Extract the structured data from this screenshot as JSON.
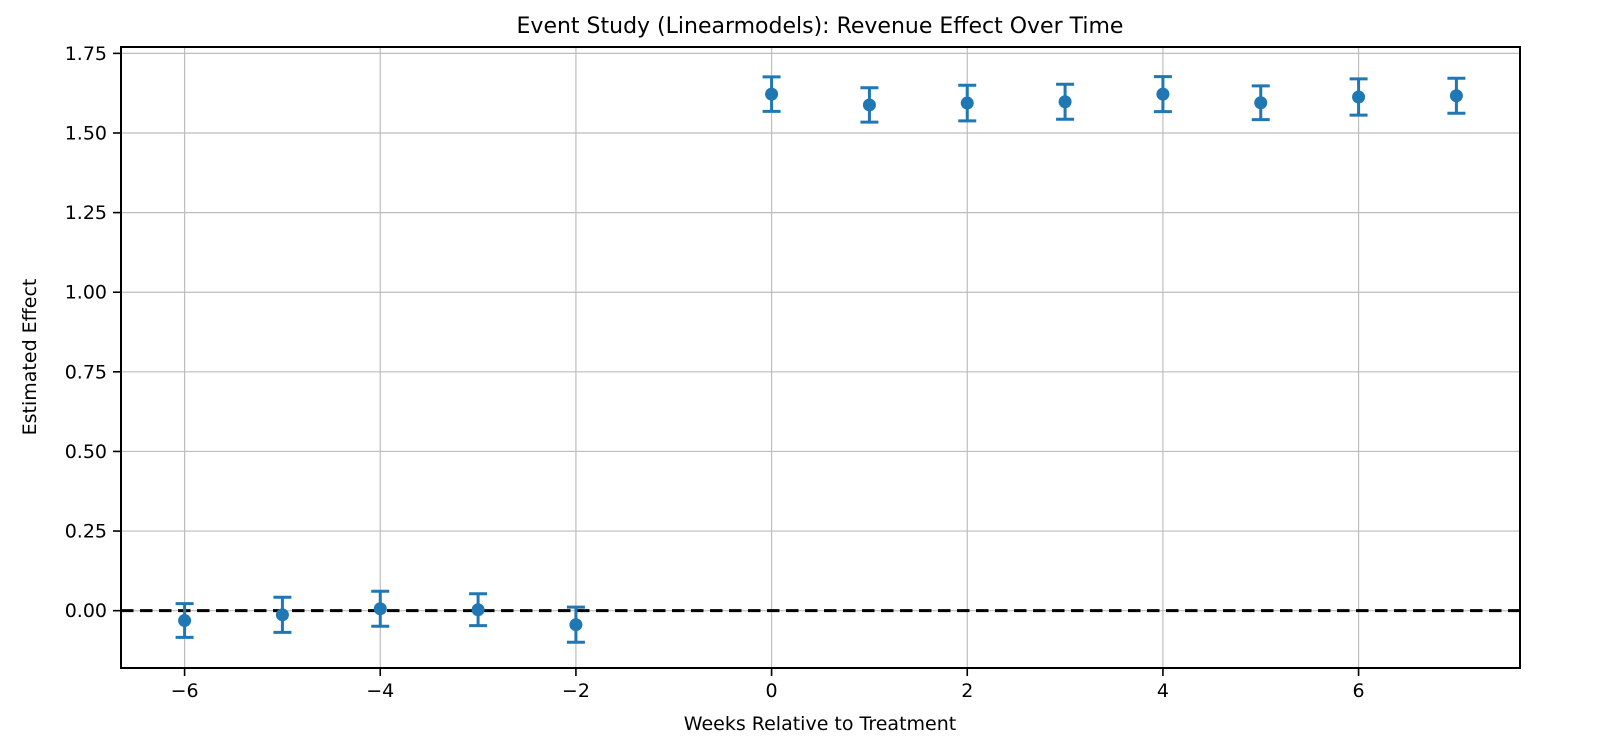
{
  "figure": {
    "kind": "matplotlib-style event study figure",
    "background": "#ffffff"
  },
  "colors": {
    "marker": "#1f77b4",
    "grid": "#bdbdbd",
    "spine": "#000000",
    "zero_line": "#000000",
    "text": "#000000"
  },
  "chart_data": {
    "type": "scatter",
    "subtype": "errorbar-event-study",
    "title": "Event Study (Linearmodels): Revenue Effect Over Time",
    "xlabel": "Weeks Relative to Treatment",
    "ylabel": "Estimated Effect",
    "xlim": [
      -6.65,
      7.65
    ],
    "ylim": [
      -0.18,
      1.77
    ],
    "grid": true,
    "legend": "none",
    "x_ticks": {
      "values": [
        -6,
        -4,
        -2,
        0,
        2,
        4,
        6
      ],
      "labels": [
        "−6",
        "−4",
        "−2",
        "0",
        "2",
        "4",
        "6"
      ]
    },
    "y_ticks": {
      "values": [
        0.0,
        0.25,
        0.5,
        0.75,
        1.0,
        1.25,
        1.5,
        1.75
      ],
      "labels": [
        "0.00",
        "0.25",
        "0.50",
        "0.75",
        "1.00",
        "1.25",
        "1.50",
        "1.75"
      ]
    },
    "zero_line": {
      "y": 0,
      "style": "dashed",
      "color": "#000000"
    },
    "reference_week_omitted": -1,
    "series": [
      {
        "name": "estimated-effect",
        "marker": "circle",
        "marker_color": "#1f77b4",
        "x": [
          -6,
          -5,
          -4,
          -3,
          -2,
          0,
          1,
          2,
          3,
          4,
          5,
          6,
          7
        ],
        "y": [
          -0.031,
          -0.013,
          0.006,
          0.003,
          -0.044,
          1.622,
          1.588,
          1.594,
          1.598,
          1.622,
          1.595,
          1.613,
          1.617
        ],
        "ci_half": [
          0.053,
          0.055,
          0.055,
          0.05,
          0.055,
          0.054,
          0.054,
          0.056,
          0.055,
          0.055,
          0.053,
          0.057,
          0.055
        ]
      }
    ]
  }
}
